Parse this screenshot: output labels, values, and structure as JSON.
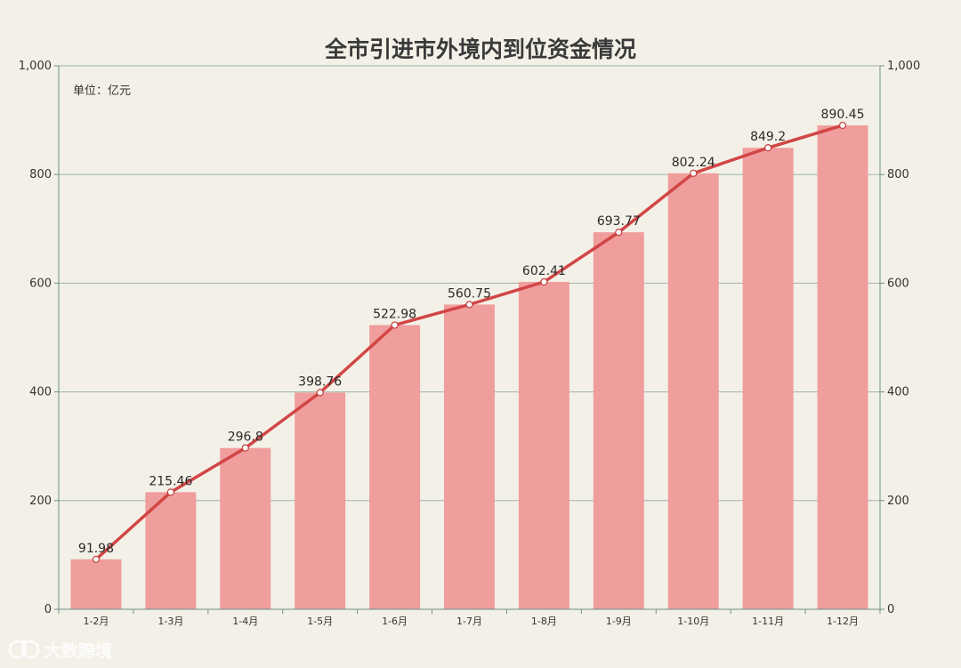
{
  "chart_data": {
    "type": "bar",
    "title": "全市引进市外境内到位资金情况",
    "unit_label": "单位：亿元",
    "categories": [
      "1-2月",
      "1-3月",
      "1-4月",
      "1-5月",
      "1-6月",
      "1-7月",
      "1-8月",
      "1-9月",
      "1-10月",
      "1-11月",
      "1-12月"
    ],
    "series": [
      {
        "type": "bar",
        "values": [
          91.98,
          215.46,
          296.8,
          398.76,
          522.98,
          560.75,
          602.41,
          693.77,
          802.24,
          849.2,
          890.45
        ],
        "color": "#f09d9d"
      },
      {
        "type": "line",
        "values": [
          91.98,
          215.46,
          296.8,
          398.76,
          522.98,
          560.75,
          602.41,
          693.77,
          802.24,
          849.2,
          890.45
        ],
        "color": "#d24646"
      }
    ],
    "data_labels": [
      "91.98",
      "215.46",
      "296.8",
      "398.76",
      "522.98",
      "560.75",
      "602.41",
      "693.77",
      "802.24",
      "849.2",
      "890.45"
    ],
    "ylim": [
      0,
      1000
    ],
    "yticks": [
      0,
      200,
      400,
      600,
      800,
      1000
    ],
    "ytick_labels": [
      "0",
      "200",
      "400",
      "600",
      "800",
      "1,000"
    ],
    "y2ticks": [
      0,
      200,
      400,
      600,
      800,
      1000
    ],
    "y2tick_labels": [
      "0",
      "200",
      "400",
      "600",
      "800",
      "1,000"
    ],
    "grid": true,
    "grid_color": "#9fb2ab",
    "axis_color": "#6b9088",
    "background": "#f3f1e7"
  },
  "watermark": {
    "text": "大数跨境",
    "icon": "brand-logo-icon"
  }
}
